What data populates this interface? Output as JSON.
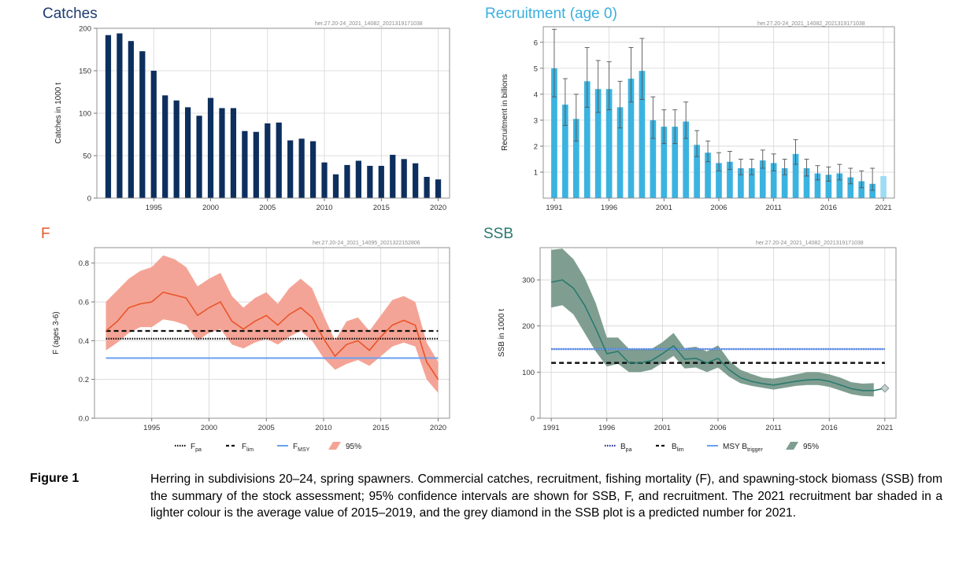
{
  "figure": {
    "label": "Figure 1",
    "caption": "Herring in subdivisions 20–24, spring spawners. Commercial catches, recruitment, fishing mortality (F), and spawning-stock biomass (SSB) from the summary of the stock assessment; 95% confidence intervals are shown for SSB, F, and recruitment. The 2021 recruitment bar shaded in a lighter colour is the average value of 2015–2019, and the grey diamond in the SSB plot is a predicted number for 2021."
  },
  "colors": {
    "catches_bar": "#0d2f5e",
    "catches_title": "#1f3b6e",
    "recruit_bar": "#3bb3e0",
    "recruit_bar_light": "#9fdcf3",
    "recruit_title": "#39b0de",
    "f_line": "#e8552a",
    "f_band": "#f4a496",
    "f_title": "#e8552a",
    "fmsy": "#6a9ff0",
    "ssb_line": "#2a7a6e",
    "ssb_band": "#7f9e91",
    "ssb_title": "#2a7a6e",
    "bpa": "#1a2a9a",
    "diamond": "#c5cfcc"
  },
  "chart_data": [
    {
      "type": "bar",
      "title": "Catches",
      "code": "her.27.20-24_2021_14082_2021319171038",
      "ylabel": "Catches in 1000 t",
      "xlabel": "",
      "xlim": [
        1990,
        2021
      ],
      "ylim": [
        0,
        200
      ],
      "yticks": [
        0,
        50,
        100,
        150,
        200
      ],
      "xticks": [
        1995,
        2000,
        2005,
        2010,
        2015,
        2020
      ],
      "grid": true,
      "categories": [
        1991,
        1992,
        1993,
        1994,
        1995,
        1996,
        1997,
        1998,
        1999,
        2000,
        2001,
        2002,
        2003,
        2004,
        2005,
        2006,
        2007,
        2008,
        2009,
        2010,
        2011,
        2012,
        2013,
        2014,
        2015,
        2016,
        2017,
        2018,
        2019,
        2020
      ],
      "values": [
        192,
        194,
        185,
        173,
        150,
        121,
        115,
        107,
        97,
        118,
        106,
        106,
        79,
        78,
        88,
        89,
        68,
        70,
        67,
        42,
        28,
        39,
        44,
        38,
        38,
        51,
        46,
        41,
        25,
        22
      ]
    },
    {
      "type": "bar",
      "title": "Recruitment (age 0)",
      "code": "her.27.20-24_2021_14082_2021319171038",
      "ylabel": "Recruitment in billions",
      "xlabel": "",
      "xlim": [
        1990,
        2022
      ],
      "ylim": [
        0,
        6.6
      ],
      "yticks": [
        1,
        2,
        3,
        4,
        5,
        6
      ],
      "xticks": [
        1991,
        1996,
        2001,
        2006,
        2011,
        2016,
        2021
      ],
      "grid": true,
      "categories": [
        1991,
        1992,
        1993,
        1994,
        1995,
        1996,
        1997,
        1998,
        1999,
        2000,
        2001,
        2002,
        2003,
        2004,
        2005,
        2006,
        2007,
        2008,
        2009,
        2010,
        2011,
        2012,
        2013,
        2014,
        2015,
        2016,
        2017,
        2018,
        2019,
        2020,
        2021
      ],
      "values": [
        5.0,
        3.6,
        3.05,
        4.5,
        4.2,
        4.2,
        3.5,
        4.6,
        4.9,
        3.0,
        2.75,
        2.75,
        2.95,
        2.05,
        1.75,
        1.35,
        1.4,
        1.15,
        1.15,
        1.45,
        1.35,
        1.15,
        1.7,
        1.15,
        0.95,
        0.9,
        0.95,
        0.8,
        0.65,
        0.55,
        0.85
      ],
      "ci_low": [
        3.9,
        2.8,
        2.2,
        3.5,
        3.3,
        3.4,
        2.7,
        3.7,
        3.8,
        2.3,
        2.1,
        2.1,
        2.3,
        1.6,
        1.4,
        1.05,
        1.1,
        0.9,
        0.9,
        1.15,
        1.05,
        0.9,
        1.3,
        0.85,
        0.7,
        0.65,
        0.7,
        0.55,
        0.4,
        0.3,
        null
      ],
      "ci_high": [
        6.5,
        4.6,
        4.0,
        5.8,
        5.3,
        5.25,
        4.5,
        5.8,
        6.15,
        3.9,
        3.4,
        3.4,
        3.7,
        2.6,
        2.2,
        1.75,
        1.8,
        1.5,
        1.5,
        1.85,
        1.7,
        1.5,
        2.25,
        1.5,
        1.25,
        1.2,
        1.3,
        1.15,
        1.05,
        1.15,
        null
      ],
      "highlight": {
        "category": 2021,
        "note": "lighter shade"
      }
    },
    {
      "type": "line",
      "title": "F",
      "code": "her.27.20-24_2021_14095_2021322152806",
      "ylabel": "F (ages 3-6)",
      "xlabel": "",
      "xlim": [
        1990,
        2021
      ],
      "ylim": [
        0,
        0.88
      ],
      "yticks": [
        0,
        0.2,
        0.4,
        0.6,
        0.8
      ],
      "xticks": [
        1995,
        2000,
        2005,
        2010,
        2015,
        2020
      ],
      "grid": true,
      "x": [
        1991,
        1992,
        1993,
        1994,
        1995,
        1996,
        1997,
        1998,
        1999,
        2000,
        2001,
        2002,
        2003,
        2004,
        2005,
        2006,
        2007,
        2008,
        2009,
        2010,
        2011,
        2012,
        2013,
        2014,
        2015,
        2016,
        2017,
        2018,
        2019,
        2020
      ],
      "series": [
        {
          "name": "F",
          "values": [
            0.45,
            0.5,
            0.57,
            0.59,
            0.6,
            0.65,
            0.635,
            0.62,
            0.53,
            0.57,
            0.6,
            0.5,
            0.46,
            0.5,
            0.53,
            0.48,
            0.535,
            0.57,
            0.52,
            0.41,
            0.32,
            0.38,
            0.4,
            0.35,
            0.42,
            0.48,
            0.505,
            0.48,
            0.29,
            0.2
          ]
        }
      ],
      "band": {
        "name": "95%",
        "low": [
          0.35,
          0.39,
          0.44,
          0.47,
          0.47,
          0.51,
          0.5,
          0.48,
          0.4,
          0.44,
          0.46,
          0.38,
          0.36,
          0.39,
          0.41,
          0.38,
          0.42,
          0.45,
          0.4,
          0.31,
          0.25,
          0.28,
          0.3,
          0.27,
          0.32,
          0.37,
          0.39,
          0.37,
          0.2,
          0.13
        ],
        "high": [
          0.6,
          0.66,
          0.72,
          0.76,
          0.78,
          0.84,
          0.82,
          0.78,
          0.68,
          0.72,
          0.75,
          0.63,
          0.57,
          0.62,
          0.65,
          0.59,
          0.67,
          0.72,
          0.67,
          0.53,
          0.4,
          0.5,
          0.52,
          0.45,
          0.53,
          0.61,
          0.63,
          0.6,
          0.39,
          0.29
        ]
      },
      "reference_lines": [
        {
          "name": "Fpa",
          "value": 0.41,
          "style": "dotted",
          "color": "#111111",
          "label_main": "F",
          "label_sub": "pa"
        },
        {
          "name": "Flim",
          "value": 0.45,
          "style": "dashed",
          "color": "#111111",
          "label_main": "F",
          "label_sub": "lim"
        },
        {
          "name": "FMSY",
          "value": 0.31,
          "style": "solid",
          "color": "#6a9ff0",
          "label_main": "F",
          "label_sub": "MSY"
        }
      ],
      "legend": {
        "placement": "bottom",
        "band_label": "95%"
      }
    },
    {
      "type": "line",
      "title": "SSB",
      "code": "her.27.20-24_2021_14082_2021319171038",
      "ylabel": "SSB in 1000 t",
      "xlabel": "",
      "xlim": [
        1990,
        2022
      ],
      "ylim": [
        0,
        370
      ],
      "yticks": [
        0,
        100,
        200,
        300
      ],
      "xticks": [
        1991,
        1996,
        2001,
        2006,
        2011,
        2016,
        2021
      ],
      "grid": true,
      "x": [
        1991,
        1992,
        1993,
        1994,
        1995,
        1996,
        1997,
        1998,
        1999,
        2000,
        2001,
        2002,
        2003,
        2004,
        2005,
        2006,
        2007,
        2008,
        2009,
        2010,
        2011,
        2012,
        2013,
        2014,
        2015,
        2016,
        2017,
        2018,
        2019,
        2020
      ],
      "series": [
        {
          "name": "SSB",
          "values": [
            295,
            300,
            282,
            245,
            195,
            140,
            145,
            120,
            120,
            125,
            140,
            157,
            128,
            130,
            120,
            130,
            105,
            88,
            80,
            75,
            72,
            76,
            80,
            83,
            84,
            80,
            72,
            64,
            60,
            60
          ]
        }
      ],
      "band": {
        "name": "95%",
        "low": [
          240,
          245,
          225,
          185,
          145,
          112,
          118,
          100,
          100,
          105,
          120,
          135,
          108,
          110,
          100,
          110,
          90,
          76,
          70,
          66,
          62,
          66,
          70,
          72,
          72,
          68,
          60,
          52,
          48,
          47
        ],
        "high": [
          365,
          368,
          345,
          305,
          250,
          175,
          175,
          150,
          150,
          150,
          165,
          185,
          152,
          155,
          145,
          158,
          125,
          105,
          96,
          88,
          86,
          90,
          95,
          100,
          100,
          95,
          88,
          78,
          75,
          76
        ]
      },
      "predicted": {
        "x": 2021,
        "value": 65,
        "marker": "diamond"
      },
      "reference_lines": [
        {
          "name": "Bpa",
          "value": 150,
          "style": "dotted",
          "color": "#1a2a9a",
          "label_main": "B",
          "label_sub": "pa"
        },
        {
          "name": "Blim",
          "value": 120,
          "style": "dashed",
          "color": "#111111",
          "label_main": "B",
          "label_sub": "lim"
        },
        {
          "name": "MSY Btrigger",
          "value": 150,
          "style": "solid",
          "color": "#6a9ff0",
          "label_main": "MSY B",
          "label_sub": "trigger"
        }
      ],
      "legend": {
        "placement": "bottom",
        "band_label": "95%"
      }
    }
  ]
}
